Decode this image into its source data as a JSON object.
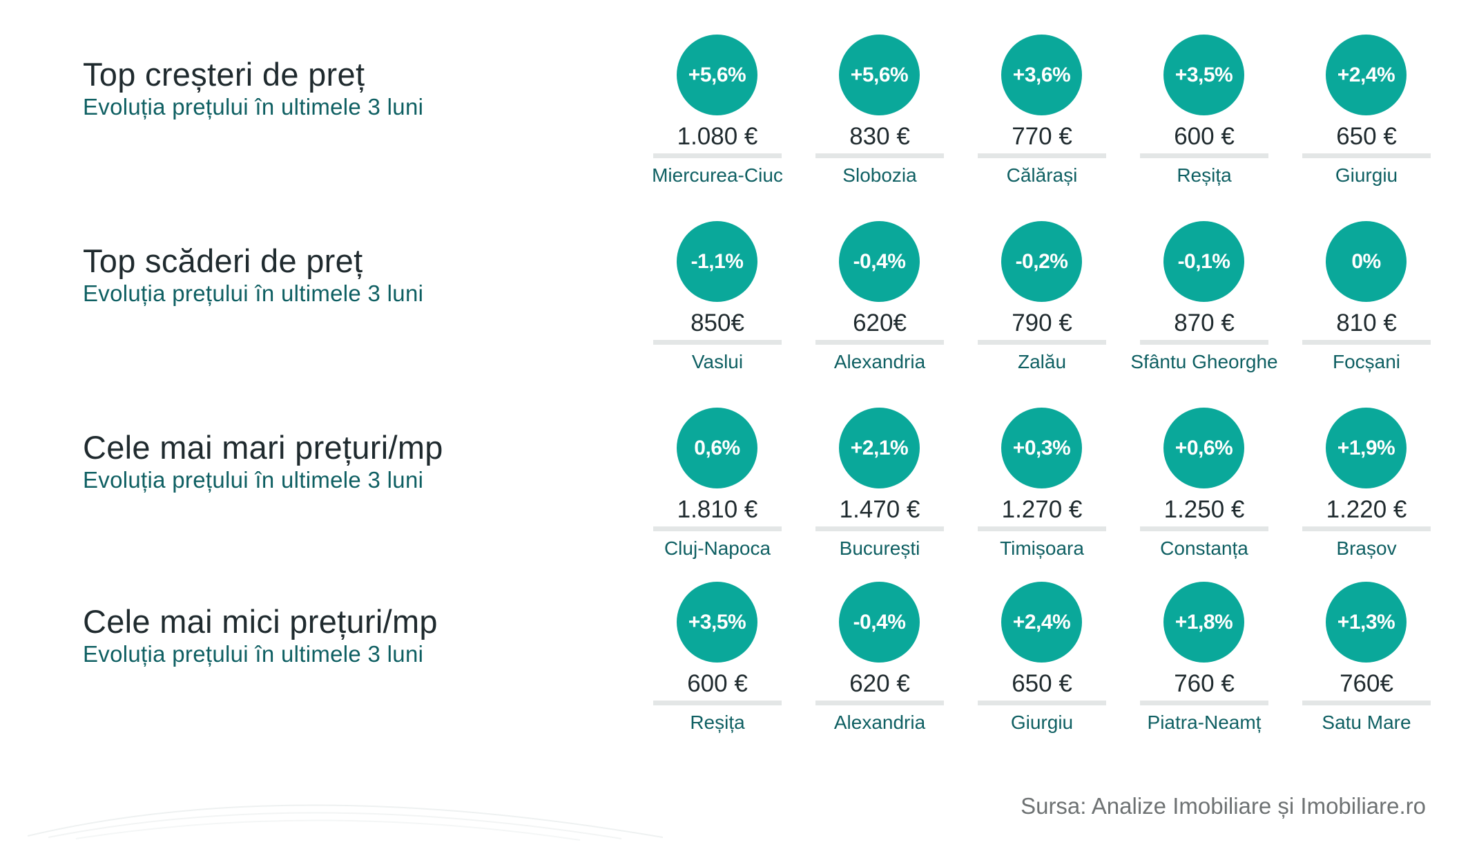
{
  "chart_data": [
    {
      "type": "table",
      "title": "Top creșteri de preț",
      "subtitle": "Evoluția prețului în ultimele 3 luni",
      "items": [
        {
          "change": "+5,6%",
          "price": "1.080 €",
          "city": "Miercurea-Ciuc"
        },
        {
          "change": "+5,6%",
          "price": "830 €",
          "city": "Slobozia"
        },
        {
          "change": "+3,6%",
          "price": "770 €",
          "city": "Călărași"
        },
        {
          "change": "+3,5%",
          "price": "600 €",
          "city": "Reșița"
        },
        {
          "change": "+2,4%",
          "price": "650 €",
          "city": "Giurgiu"
        }
      ]
    },
    {
      "type": "table",
      "title": "Top scăderi de preț",
      "subtitle": "Evoluția prețului în ultimele 3 luni",
      "items": [
        {
          "change": "-1,1%",
          "price": "850€",
          "city": "Vaslui"
        },
        {
          "change": "-0,4%",
          "price": "620€",
          "city": "Alexandria"
        },
        {
          "change": "-0,2%",
          "price": "790 €",
          "city": "Zalău"
        },
        {
          "change": "-0,1%",
          "price": "870 €",
          "city": "Sfântu Gheorghe"
        },
        {
          "change": "0%",
          "price": "810 €",
          "city": "Focșani"
        }
      ]
    },
    {
      "type": "table",
      "title": "Cele mai mari prețuri/mp",
      "subtitle": "Evoluția prețului în ultimele 3 luni",
      "items": [
        {
          "change": "0,6%",
          "price": "1.810 €",
          "city": "Cluj-Napoca"
        },
        {
          "change": "+2,1%",
          "price": "1.470 €",
          "city": "București"
        },
        {
          "change": "+0,3%",
          "price": "1.270 €",
          "city": "Timișoara"
        },
        {
          "change": "+0,6%",
          "price": "1.250 €",
          "city": "Constanța"
        },
        {
          "change": "+1,9%",
          "price": "1.220 €",
          "city": "Brașov"
        }
      ]
    },
    {
      "type": "table",
      "title": "Cele mai mici prețuri/mp",
      "subtitle": "Evoluția prețului în ultimele 3 luni",
      "items": [
        {
          "change": "+3,5%",
          "price": "600 €",
          "city": "Reșița"
        },
        {
          "change": "-0,4%",
          "price": "620 €",
          "city": "Alexandria"
        },
        {
          "change": "+2,4%",
          "price": "650 €",
          "city": "Giurgiu"
        },
        {
          "change": "+1,8%",
          "price": "760 €",
          "city": "Piatra-Neamț"
        },
        {
          "change": "+1,3%",
          "price": "760€",
          "city": "Satu Mare"
        }
      ]
    }
  ],
  "source": "Sursa: Analize Imobiliare și Imobiliare.ro",
  "colors": {
    "circle": "#0aa89a",
    "title": "#1f2a2e",
    "subtitle": "#0e5f62",
    "bar": "#e3e6e6",
    "source": "#6e7273"
  }
}
